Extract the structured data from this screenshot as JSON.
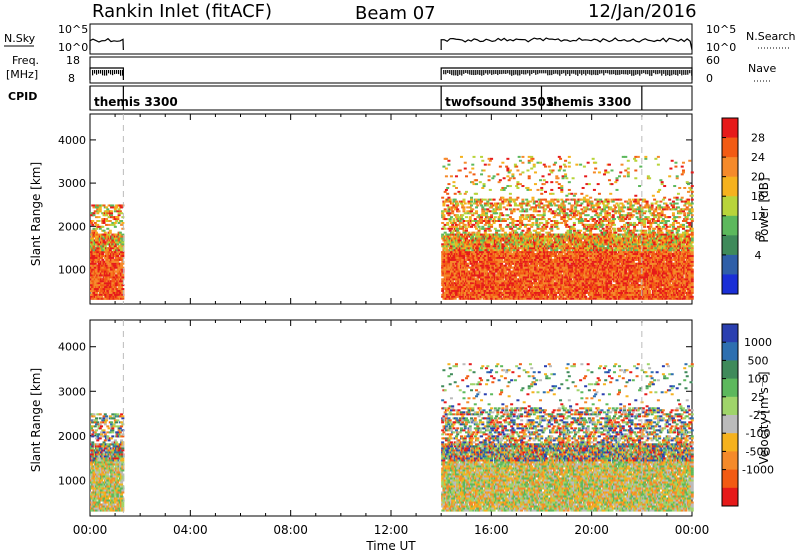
{
  "header": {
    "station": "Rankin Inlet (fitACF)",
    "beam": "Beam 07",
    "date": "12/Jan/2016"
  },
  "aux_panels": {
    "nsky_label": "N.Sky",
    "nsky_ticks": [
      "10^5",
      "10^0"
    ],
    "nsearch_label": "N.Search",
    "nsearch_ticks": [
      "10^5",
      "10^0"
    ],
    "freq_label_1": "Freq.",
    "freq_label_2": "[MHz]",
    "freq_ticks": [
      "18",
      "8"
    ],
    "nave_label": "Nave",
    "nave_ticks": [
      "60",
      "0"
    ],
    "cpid_label": "CPID",
    "cpid_modes": [
      {
        "name": "themis 3300",
        "start_hour": 0.0,
        "end_hour": 1.33
      },
      {
        "name": "twofsound 3503",
        "start_hour": 14.0,
        "end_hour": 18.0
      },
      {
        "name": "themis 3300",
        "start_hour": 18.0,
        "end_hour": 22.0
      }
    ]
  },
  "chart_data": [
    {
      "type": "heatmap",
      "variable": "Power",
      "ylabel": "Slant Range [km]",
      "xlabel": "",
      "ylim": [
        200,
        4600
      ],
      "y_ticks": [
        1000,
        2000,
        3000,
        4000
      ],
      "xlim": [
        0,
        24
      ],
      "colorbar": {
        "label": "Power [dB]",
        "ticks": [
          "28",
          "24",
          "20",
          "16",
          "12",
          "8",
          "4"
        ],
        "colors": [
          "#e61a1a",
          "#f25b14",
          "#f58a2a",
          "#f5b21e",
          "#b8d43a",
          "#5cb85c",
          "#3f8a5a",
          "#2f5fa8",
          "#1a2fd6"
        ]
      },
      "data_segments": [
        {
          "start_hour": 0.0,
          "end_hour": 1.3,
          "range_km": [
            300,
            2500
          ]
        },
        {
          "start_hour": 14.0,
          "end_hour": 24.0,
          "range_km": [
            300,
            3600
          ]
        }
      ]
    },
    {
      "type": "heatmap",
      "variable": "Velocity",
      "ylabel": "Slant Range [km]",
      "xlabel": "Time UT",
      "ylim": [
        200,
        4600
      ],
      "y_ticks": [
        1000,
        2000,
        3000,
        4000
      ],
      "xlim": [
        0,
        24
      ],
      "x_ticks": [
        "00:00",
        "04:00",
        "08:00",
        "12:00",
        "16:00",
        "20:00",
        "00:00"
      ],
      "colorbar": {
        "label": "Velocity [m s⁻¹]",
        "ticks": [
          "1000",
          "500",
          "100",
          "25",
          "-25",
          "-100",
          "-500",
          "-1000"
        ],
        "colors": [
          "#2a3fb0",
          "#2d6fb0",
          "#3f8a5a",
          "#5cb85c",
          "#9fd46a",
          "#bbbbbb",
          "#f5b21e",
          "#f58a2a",
          "#f25b14",
          "#e61a1a"
        ]
      },
      "data_segments": [
        {
          "start_hour": 0.0,
          "end_hour": 1.3,
          "range_km": [
            300,
            2500
          ]
        },
        {
          "start_hour": 14.0,
          "end_hour": 24.0,
          "range_km": [
            300,
            3600
          ]
        }
      ]
    }
  ]
}
